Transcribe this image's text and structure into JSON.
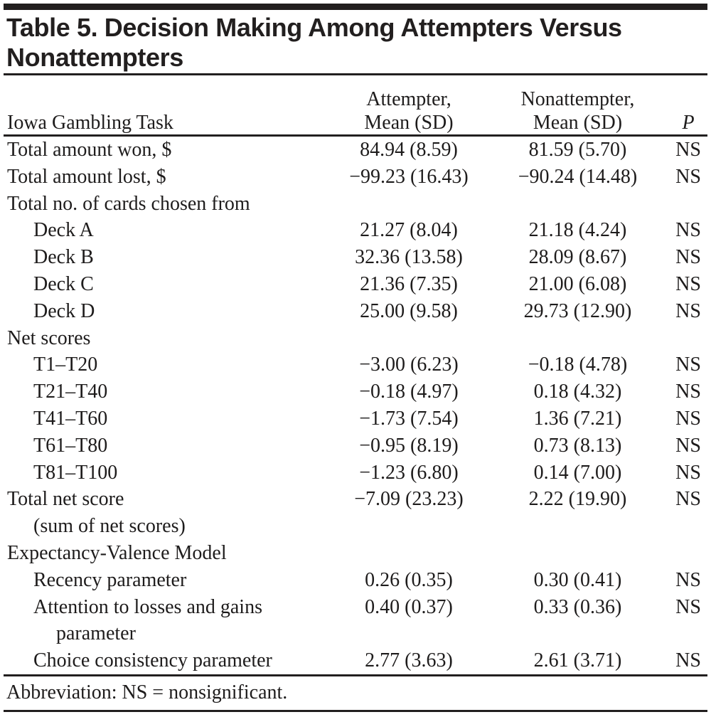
{
  "table": {
    "title_lines": [
      "Table 5. Decision Making Among Attempters Versus",
      "Nonattempters"
    ],
    "columns": {
      "stub": "Iowa Gambling Task",
      "attempter_line1": "Attempter,",
      "attempter_line2": "Mean (SD)",
      "nonattempter_line1": "Nonattempter,",
      "nonattempter_line2": "Mean (SD)",
      "p": "P"
    },
    "rows": [
      {
        "label": "Total amount won, $",
        "indent": 0,
        "attempter": "84.94 (8.59)",
        "nonattempter": "81.59 (5.70)",
        "p": "NS"
      },
      {
        "label": "Total amount lost, $",
        "indent": 0,
        "attempter": "−99.23 (16.43)",
        "nonattempter": "−90.24 (14.48)",
        "p": "NS"
      },
      {
        "label": "Total no. of cards chosen from",
        "indent": 0,
        "attempter": "",
        "nonattempter": "",
        "p": ""
      },
      {
        "label": "Deck A",
        "indent": 1,
        "attempter": "21.27 (8.04)",
        "nonattempter": "21.18 (4.24)",
        "p": "NS"
      },
      {
        "label": "Deck B",
        "indent": 1,
        "attempter": "32.36 (13.58)",
        "nonattempter": "28.09 (8.67)",
        "p": "NS"
      },
      {
        "label": "Deck C",
        "indent": 1,
        "attempter": "21.36 (7.35)",
        "nonattempter": "21.00 (6.08)",
        "p": "NS"
      },
      {
        "label": "Deck D",
        "indent": 1,
        "attempter": "25.00 (9.58)",
        "nonattempter": "29.73 (12.90)",
        "p": "NS"
      },
      {
        "label": "Net scores",
        "indent": 0,
        "attempter": "",
        "nonattempter": "",
        "p": ""
      },
      {
        "label": "T1–T20",
        "indent": 1,
        "attempter": "−3.00 (6.23)",
        "nonattempter": "−0.18 (4.78)",
        "p": "NS"
      },
      {
        "label": "T21–T40",
        "indent": 1,
        "attempter": "−0.18 (4.97)",
        "nonattempter": "0.18 (4.32)",
        "p": "NS"
      },
      {
        "label": "T41–T60",
        "indent": 1,
        "attempter": "−1.73 (7.54)",
        "nonattempter": "1.36 (7.21)",
        "p": "NS"
      },
      {
        "label": "T61–T80",
        "indent": 1,
        "attempter": "−0.95 (8.19)",
        "nonattempter": "0.73 (8.13)",
        "p": "NS"
      },
      {
        "label": "T81–T100",
        "indent": 1,
        "attempter": "−1.23 (6.80)",
        "nonattempter": "0.14 (7.00)",
        "p": "NS"
      },
      {
        "label": "Total net score",
        "indent": 0,
        "attempter": "−7.09 (23.23)",
        "nonattempter": "2.22 (19.90)",
        "p": "NS"
      },
      {
        "label": "(sum of net scores)",
        "indent": 1,
        "attempter": "",
        "nonattempter": "",
        "p": ""
      },
      {
        "label": "Expectancy-Valence Model",
        "indent": 0,
        "attempter": "",
        "nonattempter": "",
        "p": ""
      },
      {
        "label": "Recency parameter",
        "indent": 1,
        "attempter": "0.26 (0.35)",
        "nonattempter": "0.30 (0.41)",
        "p": "NS"
      },
      {
        "label": "Attention to losses and gains",
        "indent": 1,
        "attempter": "0.40 (0.37)",
        "nonattempter": "0.33 (0.36)",
        "p": "NS"
      },
      {
        "label": "parameter",
        "indent": 2,
        "attempter": "",
        "nonattempter": "",
        "p": ""
      },
      {
        "label": "Choice consistency parameter",
        "indent": 1,
        "attempter": "2.77 (3.63)",
        "nonattempter": "2.61 (3.71)",
        "p": "NS"
      }
    ],
    "footnote": "Abbreviation: NS = nonsignificant.",
    "colors": {
      "ink": "#1e1c1c",
      "rule": "#221f1f",
      "background": "#ffffff"
    }
  }
}
